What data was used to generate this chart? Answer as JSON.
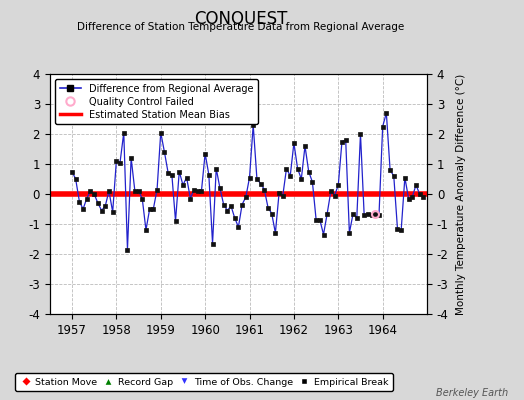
{
  "title": "CONQUEST",
  "subtitle": "Difference of Station Temperature Data from Regional Average",
  "ylabel_right": "Monthly Temperature Anomaly Difference (°C)",
  "xlim": [
    1956.5,
    1965.0
  ],
  "ylim": [
    -4,
    4
  ],
  "yticks": [
    -4,
    -3,
    -2,
    -1,
    0,
    1,
    2,
    3,
    4
  ],
  "xticks": [
    1957,
    1958,
    1959,
    1960,
    1961,
    1962,
    1963,
    1964
  ],
  "bias_value": 0.0,
  "background_color": "#d8d8d8",
  "plot_bg_color": "#ffffff",
  "line_color": "#2222cc",
  "bias_color": "#ff0000",
  "marker_color": "#111111",
  "qc_color": "#ffaacc",
  "watermark": "Berkeley Earth",
  "data": [
    1957.0,
    0.75,
    1957.083,
    0.5,
    1957.167,
    -0.25,
    1957.25,
    -0.5,
    1957.333,
    -0.15,
    1957.417,
    0.1,
    1957.5,
    0.0,
    1957.583,
    -0.3,
    1957.667,
    -0.55,
    1957.75,
    -0.4,
    1957.833,
    0.1,
    1957.917,
    -0.6,
    1958.0,
    1.1,
    1958.083,
    1.05,
    1958.167,
    2.05,
    1958.25,
    -1.85,
    1958.333,
    1.2,
    1958.417,
    0.1,
    1958.5,
    0.1,
    1958.583,
    -0.15,
    1958.667,
    -1.2,
    1958.75,
    -0.5,
    1958.833,
    -0.5,
    1958.917,
    0.15,
    1959.0,
    2.05,
    1959.083,
    1.4,
    1959.167,
    0.7,
    1959.25,
    0.65,
    1959.333,
    -0.9,
    1959.417,
    0.75,
    1959.5,
    0.3,
    1959.583,
    0.55,
    1959.667,
    -0.15,
    1959.75,
    0.15,
    1959.833,
    0.1,
    1959.917,
    0.1,
    1960.0,
    1.35,
    1960.083,
    0.65,
    1960.167,
    -1.65,
    1960.25,
    0.85,
    1960.333,
    0.2,
    1960.417,
    -0.35,
    1960.5,
    -0.55,
    1960.583,
    -0.4,
    1960.667,
    -0.8,
    1960.75,
    -1.1,
    1960.833,
    -0.35,
    1960.917,
    -0.1,
    1961.0,
    0.55,
    1961.083,
    2.3,
    1961.167,
    0.5,
    1961.25,
    0.35,
    1961.333,
    0.15,
    1961.417,
    -0.45,
    1961.5,
    -0.65,
    1961.583,
    -1.3,
    1961.667,
    0.05,
    1961.75,
    -0.05,
    1961.833,
    0.85,
    1961.917,
    0.6,
    1962.0,
    1.7,
    1962.083,
    0.85,
    1962.167,
    0.5,
    1962.25,
    1.6,
    1962.333,
    0.75,
    1962.417,
    0.4,
    1962.5,
    -0.85,
    1962.583,
    -0.85,
    1962.667,
    -1.35,
    1962.75,
    -0.65,
    1962.833,
    0.1,
    1962.917,
    -0.05,
    1963.0,
    0.3,
    1963.083,
    1.75,
    1963.167,
    1.8,
    1963.25,
    -1.3,
    1963.333,
    -0.65,
    1963.417,
    -0.8,
    1963.5,
    2.0,
    1963.583,
    -0.7,
    1963.667,
    -0.65,
    1963.75,
    -0.7,
    1963.833,
    -0.65,
    1963.917,
    -0.7,
    1964.0,
    2.25,
    1964.083,
    2.7,
    1964.167,
    0.8,
    1964.25,
    0.6,
    1964.333,
    -1.15,
    1964.417,
    -1.2,
    1964.5,
    0.55,
    1964.583,
    -0.15,
    1964.667,
    -0.1,
    1964.75,
    0.3,
    1964.833,
    0.0,
    1964.917,
    -0.1
  ],
  "qc_points": [
    1963.833
  ],
  "qc_values": [
    -0.65
  ]
}
